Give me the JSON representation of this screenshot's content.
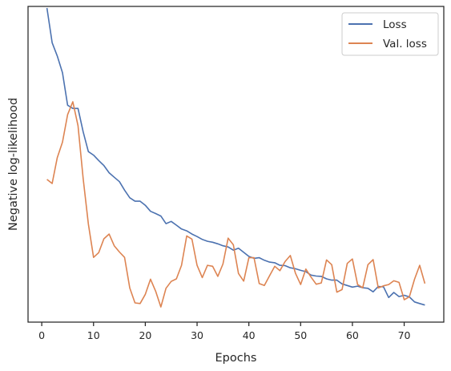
{
  "chart_data": {
    "type": "line",
    "title": "",
    "xlabel": "Epochs",
    "ylabel": "Negative log-likelihood",
    "xlim": [
      -2.65,
      77.65
    ],
    "ylim": [
      0,
      100
    ],
    "x_ticks": [
      0,
      10,
      20,
      30,
      40,
      50,
      60,
      70
    ],
    "x_tick_labels": [
      "0",
      "10",
      "20",
      "30",
      "40",
      "50",
      "60",
      "70"
    ],
    "y_tick_labels_visible": false,
    "grid": false,
    "legend_position": "top-right",
    "x": [
      1,
      2,
      3,
      4,
      5,
      6,
      7,
      8,
      9,
      10,
      11,
      12,
      13,
      14,
      15,
      16,
      17,
      18,
      19,
      20,
      21,
      22,
      23,
      24,
      25,
      26,
      27,
      28,
      29,
      30,
      31,
      32,
      33,
      34,
      35,
      36,
      37,
      38,
      39,
      40,
      41,
      42,
      43,
      44,
      45,
      46,
      47,
      48,
      49,
      50,
      51,
      52,
      53,
      54,
      55,
      56,
      57,
      58,
      59,
      60,
      61,
      62,
      63,
      64,
      65,
      66,
      67,
      68,
      69,
      70,
      71,
      72,
      73,
      74
    ],
    "series": [
      {
        "name": "Loss",
        "color": "#4c72b0",
        "values": [
          99.5,
          88.5,
          84.3,
          79.0,
          68.7,
          67.7,
          67.7,
          60.3,
          54.0,
          52.9,
          51.2,
          49.6,
          47.3,
          45.9,
          44.5,
          41.8,
          39.4,
          38.3,
          38.3,
          37.0,
          35.1,
          34.4,
          33.6,
          31.2,
          31.9,
          30.7,
          29.5,
          28.9,
          27.9,
          27.1,
          26.2,
          25.6,
          25.3,
          24.8,
          24.2,
          23.8,
          22.8,
          23.4,
          22.1,
          20.8,
          20.2,
          20.4,
          19.6,
          19.0,
          18.8,
          18.0,
          17.9,
          17.2,
          16.9,
          16.4,
          16.0,
          14.9,
          14.6,
          14.5,
          13.7,
          13.3,
          13.3,
          12.1,
          11.6,
          11.1,
          11.4,
          10.9,
          10.7,
          9.6,
          11.3,
          11.2,
          7.8,
          9.4,
          8.1,
          8.5,
          8.0,
          6.4,
          5.9,
          5.4
        ]
      },
      {
        "name": "Val. loss",
        "color": "#dd8452",
        "values": [
          45.2,
          43.9,
          52.1,
          57.0,
          65.7,
          69.8,
          62.2,
          45.5,
          31.1,
          20.5,
          22.0,
          26.4,
          27.9,
          24.2,
          22.2,
          20.5,
          10.8,
          6.1,
          5.9,
          8.8,
          13.6,
          9.8,
          4.8,
          10.7,
          12.9,
          13.7,
          18.0,
          27.3,
          26.3,
          18.0,
          14.1,
          18.0,
          17.7,
          14.5,
          18.4,
          26.6,
          24.5,
          15.4,
          13.0,
          20.4,
          20.4,
          12.2,
          11.6,
          14.7,
          17.7,
          16.3,
          19.2,
          21.1,
          15.5,
          11.9,
          16.8,
          14.3,
          12.0,
          12.4,
          19.7,
          18.2,
          9.5,
          10.3,
          18.6,
          20.0,
          11.9,
          10.9,
          18.2,
          19.8,
          10.8,
          11.5,
          11.9,
          13.1,
          12.6,
          7.1,
          8.0,
          13.6,
          18.0,
          12.2
        ]
      }
    ]
  }
}
